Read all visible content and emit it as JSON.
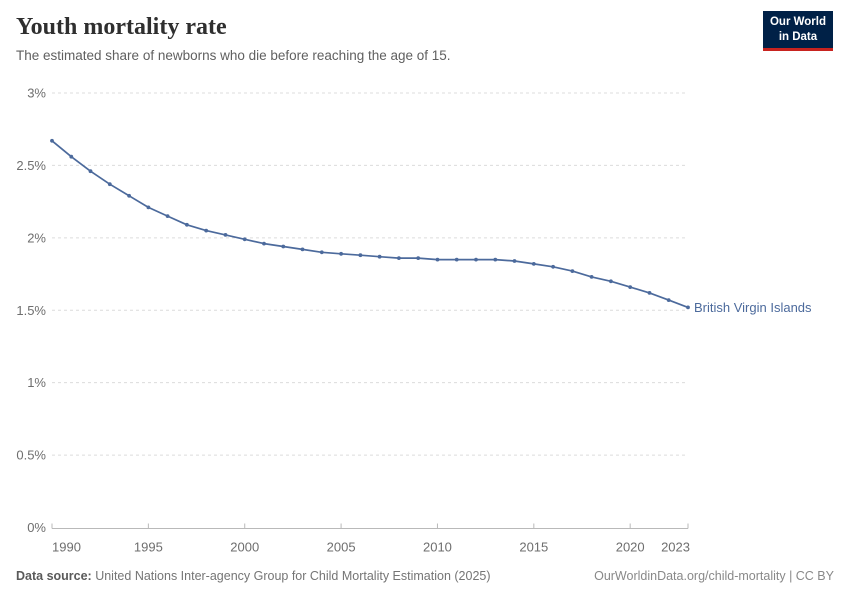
{
  "header": {
    "title": "Youth mortality rate",
    "subtitle": "The estimated share of newborns who die before reaching the age of 15.",
    "logo": {
      "line1": "Our World",
      "line2": "in Data"
    }
  },
  "chart_data": {
    "type": "line",
    "title": "Youth mortality rate",
    "subtitle": "The estimated share of newborns who die before reaching the age of 15.",
    "unit": "%",
    "x": [
      1990,
      1991,
      1992,
      1993,
      1994,
      1995,
      1996,
      1997,
      1998,
      1999,
      2000,
      2001,
      2002,
      2003,
      2004,
      2005,
      2006,
      2007,
      2008,
      2009,
      2010,
      2011,
      2012,
      2013,
      2014,
      2015,
      2016,
      2017,
      2018,
      2019,
      2020,
      2021,
      2022,
      2023
    ],
    "series": [
      {
        "name": "British Virgin Islands",
        "color": "#4c6a9c",
        "values": [
          2.67,
          2.56,
          2.46,
          2.37,
          2.29,
          2.21,
          2.15,
          2.09,
          2.05,
          2.02,
          1.99,
          1.96,
          1.94,
          1.92,
          1.9,
          1.89,
          1.88,
          1.87,
          1.86,
          1.86,
          1.85,
          1.85,
          1.85,
          1.85,
          1.84,
          1.82,
          1.8,
          1.77,
          1.73,
          1.7,
          1.66,
          1.62,
          1.57,
          1.52
        ]
      }
    ],
    "xlim": [
      1990,
      2023
    ],
    "ylim": [
      0,
      3
    ],
    "xticks": [
      1990,
      1995,
      2000,
      2005,
      2010,
      2015,
      2020,
      2023
    ],
    "yticks": [
      0,
      0.5,
      1,
      1.5,
      2,
      2.5,
      3
    ],
    "ytick_labels": [
      "0%",
      "0.5%",
      "1%",
      "1.5%",
      "2%",
      "2.5%",
      "3%"
    ],
    "grid": true,
    "legend_position": "end-of-line-label"
  },
  "footer": {
    "source_label": "Data source:",
    "source_text": " United Nations Inter-agency Group for Child Mortality Estimation (2025)",
    "credit": "OurWorldinData.org/child-mortality | CC BY"
  },
  "colors": {
    "line": "#4c6a9c",
    "grid": "#dcdcdc",
    "axis": "#b9b9b9",
    "logo_bg": "#002147",
    "logo_accent": "#c8231f"
  }
}
